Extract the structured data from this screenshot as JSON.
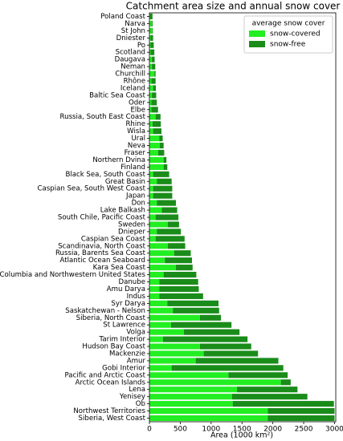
{
  "chart_data": {
    "type": "stacked-barh",
    "title": "Catchment area size and annual snow cover",
    "x_label": "Area (1000 km²)",
    "legend_title": "average snow cover",
    "legend_position": "upper right",
    "categories": [
      "Poland Coast",
      "Narva",
      "St John",
      "Dniester",
      "Po",
      "Scotland",
      "Daugava",
      "Neman",
      "Churchill",
      "Rhône",
      "Iceland",
      "Baltic Sea Coast",
      "Oder",
      "Elbe",
      "Russia, South East Coast",
      "Rhine",
      "Wisla",
      "Ural",
      "Neva",
      "Fraser",
      "Northern Dvina",
      "Finland",
      "Black Sea, South Coast",
      "Great Basin",
      "Caspian Sea, South West Coast",
      "Japan",
      "Don",
      "Lake Balkash",
      "South Chile, Pacific Coast",
      "Sweden",
      "Dnieper",
      "Caspian Sea Coast",
      "Scandinavia, North Coast",
      "Russia, Barents Sea Coast",
      "Atlantic Ocean Seaboard",
      "Kara Sea Coast",
      "Columbia and Northwestern United States",
      "Danube",
      "Amu Darya",
      "Indus",
      "Syr Darya",
      "Saskatchewan - Nelson",
      "Siberia, North Coast",
      "St Lawrence",
      "Volga",
      "Tarim Interior",
      "Hudson Bay Coast",
      "Mackenzie",
      "Amur",
      "Gobi Interior",
      "Pacific and Arctic Coast",
      "Arctic Ocean Islands",
      "Lena",
      "Yenisey",
      "Ob",
      "Northwest Territories",
      "Siberia, West Coast"
    ],
    "series": [
      {
        "name": "snow-covered",
        "color": "#22ee22",
        "values": [
          10,
          40,
          45,
          20,
          20,
          20,
          40,
          40,
          80,
          30,
          60,
          40,
          30,
          30,
          100,
          50,
          60,
          160,
          170,
          140,
          230,
          230,
          60,
          120,
          60,
          60,
          120,
          200,
          100,
          300,
          120,
          100,
          300,
          400,
          250,
          430,
          230,
          160,
          160,
          160,
          290,
          380,
          820,
          350,
          560,
          220,
          820,
          880,
          750,
          360,
          1280,
          2130,
          1420,
          1340,
          1350,
          1920,
          1920
        ]
      },
      {
        "name": "snow-free",
        "color": "#1a8c1a",
        "values": [
          40,
          12,
          10,
          40,
          50,
          60,
          45,
          55,
          20,
          70,
          45,
          70,
          90,
          110,
          80,
          135,
          135,
          55,
          60,
          100,
          45,
          60,
          260,
          240,
          310,
          310,
          310,
          250,
          370,
          180,
          390,
          470,
          280,
          270,
          440,
          270,
          530,
          630,
          640,
          710,
          830,
          750,
          340,
          980,
          900,
          1370,
          830,
          880,
          1340,
          1810,
          960,
          160,
          980,
          1220,
          1640,
          1080,
          1080
        ]
      }
    ],
    "xlim": [
      0,
      3020
    ],
    "xticks": [
      0,
      500,
      1000,
      1500,
      2000,
      2500,
      3000
    ]
  }
}
